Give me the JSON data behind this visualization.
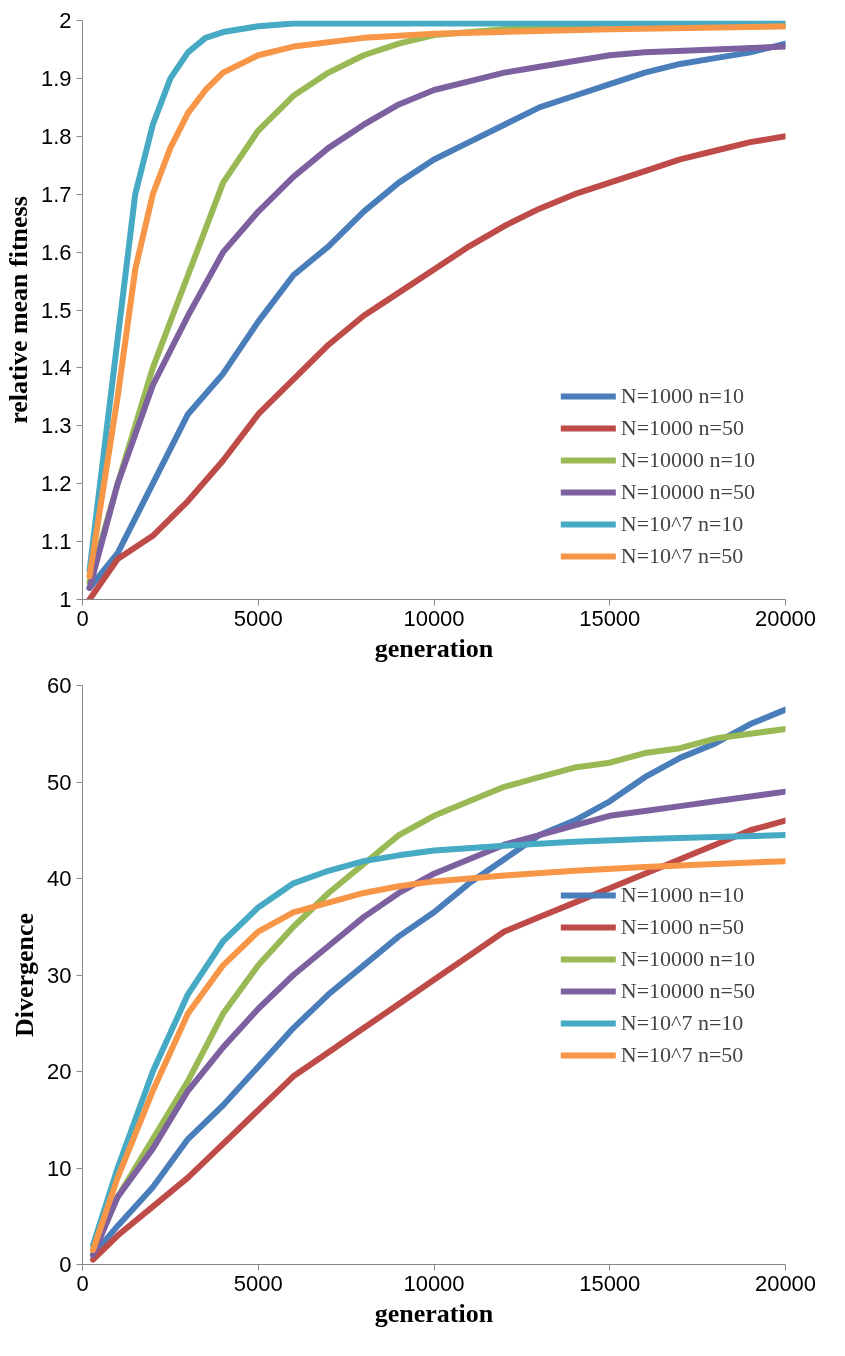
{
  "chart_data": [
    {
      "type": "line",
      "xlabel": "generation",
      "ylabel": "relative mean fitness",
      "xlim": [
        0,
        20000
      ],
      "ylim": [
        1,
        2
      ],
      "xticks": [
        0,
        5000,
        10000,
        15000,
        20000
      ],
      "yticks": [
        1,
        {
          "value": 1.1,
          "label": "1.1"
        },
        {
          "value": 1.2,
          "label": "1.2"
        },
        {
          "value": 1.3,
          "label": "1.3"
        },
        {
          "value": 1.4,
          "label": "1.4"
        },
        {
          "value": 1.5,
          "label": "1.5"
        },
        {
          "value": 1.6,
          "label": "1.6"
        },
        {
          "value": 1.7,
          "label": "1.7"
        },
        {
          "value": 1.8,
          "label": "1.8"
        },
        {
          "value": 1.9,
          "label": "1.9"
        },
        2
      ],
      "grid": false,
      "legend": "bottom right",
      "line_style": "solid",
      "series": [
        {
          "name": "N=1000 n=10",
          "color": "#4a7ebb",
          "x": [
            200,
            1000,
            2000,
            3000,
            4000,
            5000,
            6000,
            7000,
            8000,
            9000,
            10000,
            11000,
            12000,
            13000,
            14000,
            15000,
            16000,
            17000,
            18000,
            19000,
            20000
          ],
          "values": [
            1.02,
            1.08,
            1.2,
            1.32,
            1.39,
            1.48,
            1.56,
            1.61,
            1.67,
            1.72,
            1.76,
            1.79,
            1.82,
            1.85,
            1.87,
            1.89,
            1.91,
            1.925,
            1.935,
            1.945,
            1.96
          ]
        },
        {
          "name": "N=1000 n=50",
          "color": "#be4b48",
          "x": [
            200,
            1000,
            2000,
            3000,
            4000,
            5000,
            6000,
            7000,
            8000,
            9000,
            10000,
            11000,
            12000,
            13000,
            14000,
            15000,
            16000,
            17000,
            18000,
            19000,
            20000
          ],
          "values": [
            1.0,
            1.07,
            1.11,
            1.17,
            1.24,
            1.32,
            1.38,
            1.44,
            1.49,
            1.53,
            1.57,
            1.61,
            1.645,
            1.675,
            1.7,
            1.72,
            1.74,
            1.76,
            1.775,
            1.79,
            1.8
          ]
        },
        {
          "name": "N=10000 n=10",
          "color": "#98b954",
          "x": [
            200,
            1000,
            2000,
            3000,
            4000,
            5000,
            6000,
            7000,
            8000,
            9000,
            10000,
            12000,
            15000,
            20000
          ],
          "values": [
            1.03,
            1.2,
            1.4,
            1.56,
            1.72,
            1.81,
            1.87,
            1.91,
            1.94,
            1.96,
            1.975,
            1.985,
            1.99,
            1.99
          ]
        },
        {
          "name": "N=10000 n=50",
          "color": "#7d60a0",
          "x": [
            200,
            1000,
            2000,
            3000,
            4000,
            5000,
            6000,
            7000,
            8000,
            9000,
            10000,
            11000,
            12000,
            13000,
            14000,
            15000,
            16000,
            18000,
            20000
          ],
          "values": [
            1.02,
            1.2,
            1.37,
            1.49,
            1.6,
            1.67,
            1.73,
            1.78,
            1.82,
            1.855,
            1.88,
            1.895,
            1.91,
            1.92,
            1.93,
            1.94,
            1.945,
            1.95,
            1.955
          ]
        },
        {
          "name": "N=10^7 n=10",
          "color": "#46aac5",
          "x": [
            200,
            1000,
            1500,
            2000,
            2500,
            3000,
            3500,
            4000,
            5000,
            6000,
            20000
          ],
          "values": [
            1.05,
            1.45,
            1.7,
            1.82,
            1.9,
            1.945,
            1.97,
            1.98,
            1.99,
            1.995,
            1.995
          ]
        },
        {
          "name": "N=10^7 n=50",
          "color": "#f79646",
          "x": [
            200,
            1000,
            1500,
            2000,
            2500,
            3000,
            3500,
            4000,
            5000,
            6000,
            8000,
            10000,
            15000,
            20000
          ],
          "values": [
            1.04,
            1.35,
            1.57,
            1.7,
            1.78,
            1.84,
            1.88,
            1.91,
            1.94,
            1.955,
            1.97,
            1.977,
            1.985,
            1.99
          ]
        }
      ]
    },
    {
      "type": "line",
      "xlabel": "generation",
      "ylabel": "Divergence",
      "xlim": [
        0,
        20000
      ],
      "ylim": [
        0,
        60
      ],
      "xticks": [
        0,
        5000,
        10000,
        15000,
        20000
      ],
      "yticks": [
        0,
        10,
        20,
        30,
        40,
        50,
        60
      ],
      "grid": false,
      "legend": "right",
      "line_style": "solid",
      "series": [
        {
          "name": "N=1000 n=10",
          "color": "#4a7ebb",
          "x": [
            300,
            1000,
            2000,
            3000,
            4000,
            5000,
            6000,
            7000,
            8000,
            9000,
            10000,
            11000,
            12000,
            13000,
            14000,
            15000,
            16000,
            17000,
            18000,
            19000,
            20000
          ],
          "values": [
            1,
            4,
            8,
            13,
            16.5,
            20.5,
            24.5,
            28,
            31,
            34,
            36.5,
            39.5,
            42,
            44.5,
            46,
            48,
            50.5,
            52.5,
            54,
            56,
            57.5
          ]
        },
        {
          "name": "N=1000 n=50",
          "color": "#be4b48",
          "x": [
            300,
            1000,
            2000,
            3000,
            4000,
            5000,
            6000,
            7000,
            8000,
            9000,
            10000,
            11000,
            12000,
            13000,
            14000,
            15000,
            16000,
            17000,
            18000,
            19000,
            20000
          ],
          "values": [
            0.5,
            3,
            6,
            9,
            12.5,
            16,
            19.5,
            22,
            24.5,
            27,
            29.5,
            32,
            34.5,
            36,
            37.5,
            39,
            40.5,
            42,
            43.5,
            45,
            46
          ]
        },
        {
          "name": "N=10000 n=10",
          "color": "#98b954",
          "x": [
            300,
            1000,
            2000,
            3000,
            4000,
            5000,
            6000,
            7000,
            8000,
            9000,
            10000,
            11000,
            12000,
            13000,
            14000,
            15000,
            16000,
            17000,
            18000,
            19000,
            20000
          ],
          "values": [
            1.5,
            7,
            13,
            19,
            26,
            31,
            35,
            38.5,
            41.5,
            44.5,
            46.5,
            48,
            49.5,
            50.5,
            51.5,
            52,
            53,
            53.5,
            54.5,
            55,
            55.5
          ]
        },
        {
          "name": "N=10000 n=50",
          "color": "#7d60a0",
          "x": [
            300,
            1000,
            2000,
            3000,
            4000,
            5000,
            6000,
            7000,
            8000,
            9000,
            10000,
            11000,
            12000,
            13000,
            14000,
            15000,
            16000,
            17000,
            18000,
            19000,
            20000
          ],
          "values": [
            1,
            7,
            12,
            18,
            22.5,
            26.5,
            30,
            33,
            36,
            38.5,
            40.5,
            42,
            43.5,
            44.5,
            45.5,
            46.5,
            47,
            47.5,
            48,
            48.5,
            49
          ]
        },
        {
          "name": "N=10^7 n=10",
          "color": "#46aac5",
          "x": [
            300,
            1000,
            2000,
            3000,
            4000,
            5000,
            6000,
            7000,
            8000,
            9000,
            10000,
            12000,
            14000,
            16000,
            18000,
            20000
          ],
          "values": [
            2,
            10,
            20,
            28,
            33.5,
            37,
            39.5,
            40.8,
            41.8,
            42.4,
            42.9,
            43.4,
            43.8,
            44.1,
            44.3,
            44.5
          ]
        },
        {
          "name": "N=10^7 n=50",
          "color": "#f79646",
          "x": [
            300,
            1000,
            2000,
            3000,
            4000,
            5000,
            6000,
            7000,
            8000,
            9000,
            10000,
            12000,
            14000,
            16000,
            18000,
            20000
          ],
          "values": [
            1.5,
            9,
            18,
            26,
            31,
            34.5,
            36.5,
            37.5,
            38.5,
            39.2,
            39.7,
            40.3,
            40.8,
            41.2,
            41.5,
            41.8
          ]
        }
      ]
    }
  ]
}
